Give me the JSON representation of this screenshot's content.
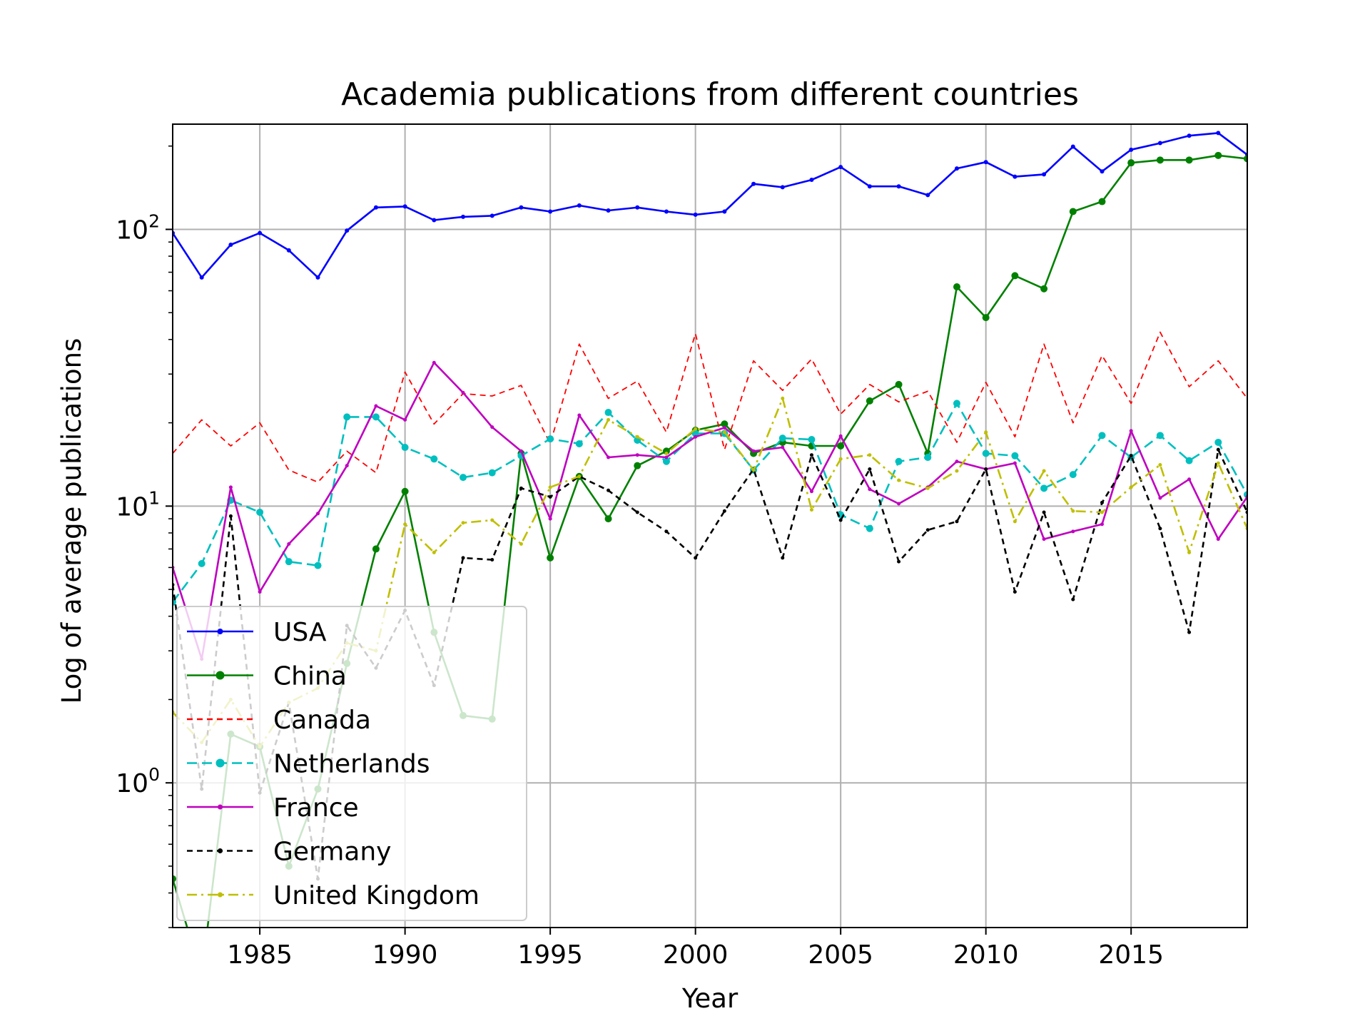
{
  "chart_data": {
    "type": "line",
    "title": "Academia publications from different countries",
    "xlabel": "Year",
    "ylabel": "Log of average publications",
    "yscale": "log",
    "xlim": [
      1982,
      2019
    ],
    "ylim": [
      0.3,
      240
    ],
    "grid": true,
    "legend_position": "lower-left",
    "xticks": [
      1985,
      1990,
      1995,
      2000,
      2005,
      2010,
      2015
    ],
    "yticks": [
      {
        "value": 1,
        "base": "10",
        "exp": "0"
      },
      {
        "value": 10,
        "base": "10",
        "exp": "1"
      },
      {
        "value": 100,
        "base": "10",
        "exp": "2"
      }
    ],
    "x": [
      1982,
      1983,
      1984,
      1985,
      1986,
      1987,
      1988,
      1989,
      1990,
      1991,
      1992,
      1993,
      1994,
      1995,
      1996,
      1997,
      1998,
      1999,
      2000,
      2001,
      2002,
      2003,
      2004,
      2005,
      2006,
      2007,
      2008,
      2009,
      2010,
      2011,
      2012,
      2013,
      2014,
      2015,
      2016,
      2017,
      2018,
      2019
    ],
    "series": [
      {
        "name": "USA",
        "color": "#0000ff",
        "dash": "",
        "marker": 3,
        "values": [
          97,
          67,
          88,
          97,
          84,
          67,
          99,
          120,
          121,
          108,
          111,
          112,
          120,
          116,
          122,
          117,
          120,
          116,
          113,
          116,
          146,
          142,
          151,
          168,
          143,
          143,
          133,
          166,
          175,
          155,
          158,
          199,
          162,
          194,
          205,
          218,
          223,
          186
        ]
      },
      {
        "name": "China",
        "color": "#008000",
        "dash": "",
        "marker": 5,
        "values": [
          0.45,
          0.2,
          1.5,
          1.35,
          0.5,
          0.95,
          2.7,
          7.0,
          11.3,
          3.5,
          1.75,
          1.7,
          15.5,
          6.5,
          12.8,
          9.0,
          14.0,
          15.8,
          18.8,
          19.8,
          15.5,
          17.0,
          16.5,
          16.5,
          24.0,
          27.5,
          15.5,
          62,
          48,
          68,
          61,
          116,
          126,
          174,
          178,
          178,
          185,
          180
        ]
      },
      {
        "name": "Canada",
        "color": "#ff0000",
        "dash": "8,6",
        "marker": 0,
        "values": [
          15.5,
          20.5,
          16.5,
          20,
          13.5,
          12.2,
          15.8,
          13.2,
          30.5,
          19.8,
          25.5,
          25,
          27.3,
          16.8,
          38.5,
          24.5,
          28.3,
          18.5,
          42,
          16,
          33.5,
          26.2,
          34,
          21.5,
          27.5,
          23.8,
          26,
          17,
          28,
          17.8,
          38.5,
          20,
          35,
          23.5,
          42.5,
          27,
          33.5,
          24.5
        ]
      },
      {
        "name": "Netherlands",
        "color": "#00bfbf",
        "dash": "14,7",
        "marker": 5,
        "values": [
          4.5,
          6.2,
          10.5,
          9.5,
          6.3,
          6.1,
          21,
          21,
          16.3,
          14.8,
          12.7,
          13.2,
          15.2,
          17.5,
          16.8,
          21.8,
          17.3,
          14.5,
          18.3,
          18.3,
          13.5,
          17.6,
          17.4,
          9.3,
          8.3,
          14.5,
          15.0,
          23.5,
          15.5,
          15.2,
          11.6,
          13.0,
          18,
          15,
          18,
          14.6,
          17,
          11
        ]
      },
      {
        "name": "France",
        "color": "#bf00bf",
        "dash": "",
        "marker": 2.5,
        "values": [
          6.0,
          2.8,
          11.7,
          4.9,
          7.3,
          9.4,
          14,
          23,
          20.5,
          33,
          25.7,
          19.3,
          15.8,
          9.0,
          21.3,
          15,
          15.3,
          15.0,
          17.8,
          19.2,
          15.8,
          16.3,
          11.3,
          17.9,
          11.5,
          10.2,
          11.7,
          14.5,
          13.6,
          14.3,
          7.6,
          8.1,
          8.6,
          18.7,
          10.7,
          12.5,
          7.6,
          10.8
        ]
      },
      {
        "name": "Germany",
        "color": "#000000",
        "dash": "8,6",
        "marker": 2.5,
        "values": [
          5.2,
          0.95,
          9.2,
          0.92,
          1.95,
          0.45,
          3.7,
          2.6,
          4.2,
          2.25,
          6.5,
          6.4,
          11.6,
          10.8,
          12.8,
          11.4,
          9.5,
          8.1,
          6.5,
          9.6,
          13.6,
          6.5,
          15.3,
          8.9,
          13.6,
          6.3,
          8.2,
          8.8,
          13.6,
          4.9,
          9.5,
          4.6,
          10.3,
          15.2,
          8.3,
          3.5,
          16,
          9.5
        ]
      },
      {
        "name": "United Kingdom",
        "color": "#bfbf00",
        "dash": "14,6,3,6",
        "marker": 2.5,
        "values": [
          1.8,
          1.4,
          2.0,
          1.35,
          1.95,
          2.2,
          3.2,
          3.0,
          8.6,
          6.8,
          8.7,
          8.9,
          7.3,
          11.7,
          12.8,
          20.5,
          17.8,
          15.5,
          19,
          18.5,
          13.5,
          24.5,
          9.7,
          14.8,
          15.3,
          12.4,
          11.6,
          13.4,
          18.5,
          8.8,
          13.4,
          9.6,
          9.5,
          11.7,
          14.1,
          6.8,
          14.3,
          8.3
        ]
      }
    ]
  }
}
